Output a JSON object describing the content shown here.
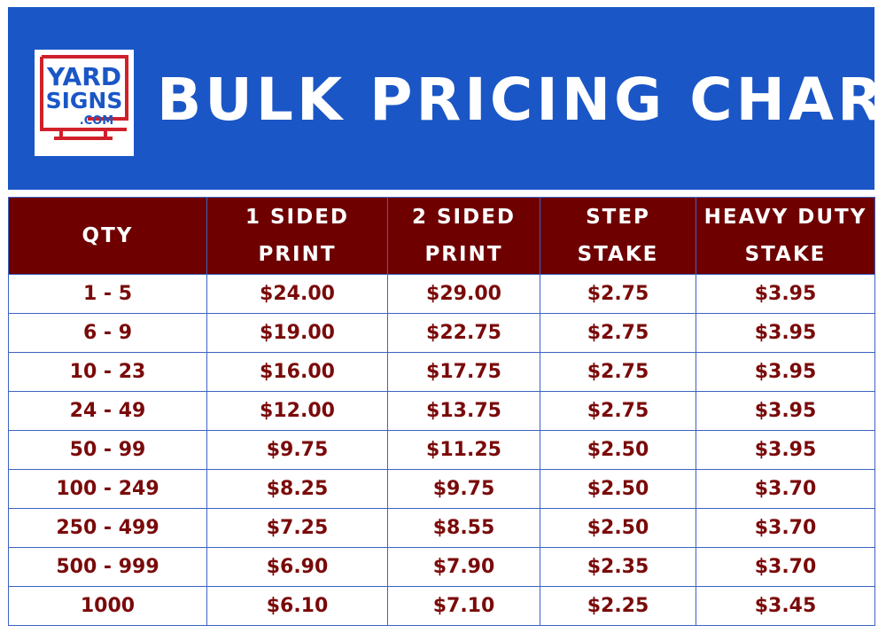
{
  "logo": {
    "line1": "YARD",
    "line2": "SIGNS",
    "line3": ".COM"
  },
  "title": "BULK PRICING CHART",
  "colors": {
    "header_bg": "#1a56c6",
    "table_header_bg": "#6e0000",
    "cell_text": "#7a0a0a",
    "grid": "#3b63c4",
    "logo_red": "#d0202a",
    "logo_blue": "#1a56c6"
  },
  "chart_data": {
    "type": "table",
    "title": "BULK PRICING CHART",
    "columns": [
      {
        "line1": "QTY",
        "line2": ""
      },
      {
        "line1": "1 SIDED",
        "line2": "PRINT"
      },
      {
        "line1": "2 SIDED",
        "line2": "PRINT"
      },
      {
        "line1": "STEP",
        "line2": "STAKE"
      },
      {
        "line1": "HEAVY DUTY",
        "line2": "STAKE"
      }
    ],
    "rows": [
      [
        "1 - 5",
        "$24.00",
        "$29.00",
        "$2.75",
        "$3.95"
      ],
      [
        "6 - 9",
        "$19.00",
        "$22.75",
        "$2.75",
        "$3.95"
      ],
      [
        "10 - 23",
        "$16.00",
        "$17.75",
        "$2.75",
        "$3.95"
      ],
      [
        "24 - 49",
        "$12.00",
        "$13.75",
        "$2.75",
        "$3.95"
      ],
      [
        "50 - 99",
        "$9.75",
        "$11.25",
        "$2.50",
        "$3.95"
      ],
      [
        "100 - 249",
        "$8.25",
        "$9.75",
        "$2.50",
        "$3.70"
      ],
      [
        "250 - 499",
        "$7.25",
        "$8.55",
        "$2.50",
        "$3.70"
      ],
      [
        "500 - 999",
        "$6.90",
        "$7.90",
        "$2.35",
        "$3.70"
      ],
      [
        "1000",
        "$6.10",
        "$7.10",
        "$2.25",
        "$3.45"
      ]
    ]
  }
}
